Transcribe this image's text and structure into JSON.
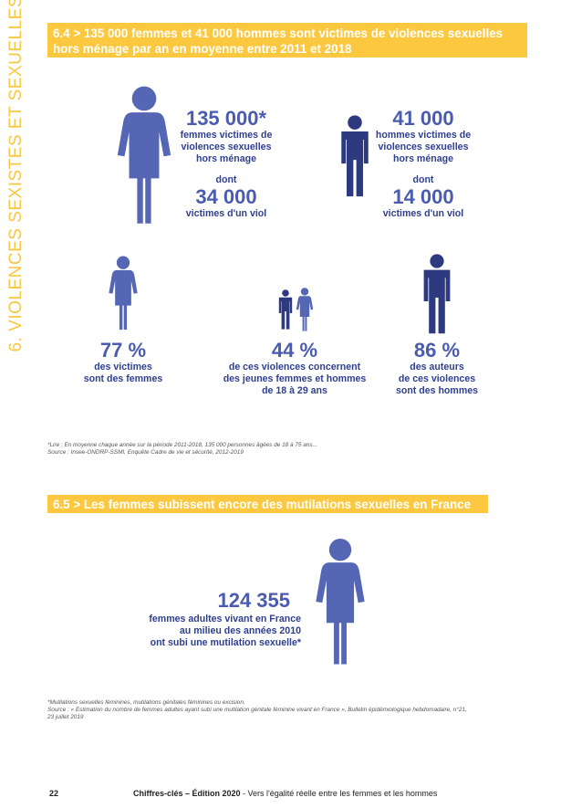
{
  "chapter_title": "6. VIOLENCES SEXISTES ET SEXUELLES",
  "section_64": {
    "banner": "6.4 > 135 000 femmes et 41 000 hommes sont victimes de violences sexuelles hors ménage par an en moyenne entre 2011 et 2018",
    "women": {
      "value": "135 000*",
      "desc_1": "femmes victimes de",
      "desc_2": "violences sexuelles",
      "desc_3": "hors ménage",
      "dont": "dont",
      "rape_value": "34 000",
      "rape_label": "victimes d'un viol"
    },
    "men": {
      "value": "41 000",
      "desc_1": "hommes victimes de",
      "desc_2": "violences sexuelles",
      "desc_3": "hors ménage",
      "dont": "dont",
      "rape_value": "14 000",
      "rape_label": "victimes d'un viol"
    },
    "victims_women": {
      "value": "77 %",
      "line_1": "des victimes",
      "line_2": "sont des femmes"
    },
    "young": {
      "value": "44 %",
      "line_1": "de ces violences concernent",
      "line_2": "des jeunes femmes et hommes",
      "line_3": "de 18 à 29 ans"
    },
    "authors_men": {
      "value": "86 %",
      "line_1": "des auteurs",
      "line_2": "de ces violences",
      "line_3": "sont des hommes"
    },
    "note_1": "*Lire : En moyenne chaque année sur la période 2011-2018, 135 000 personnes âgées de 18 à 75 ans...",
    "note_2": "Source : Insee-ONDRP-SSMI, Enquête Cadre de vie et sécurité, 2012-2019"
  },
  "section_65": {
    "banner": "6.5 > Les femmes subissent encore des mutilations sexuelles en France",
    "value": "124 355",
    "line_1": "femmes adultes vivant en France",
    "line_2": "au milieu des années 2010",
    "line_3": "ont subi une mutilation sexuelle*",
    "note_1": "*Mutilations sexuelles féminines, mutilations génitales féminines ou excision.",
    "note_2": "Source : « Estimation du nombre de femmes adultes ayant subi une mutilation génitale féminine vivant en France », Bulletin épidémiologique hebdomadaire, n°21,",
    "note_3": "23 juillet 2019"
  },
  "footer": {
    "page": "22",
    "title": "Chiffres-clés – Édition 2020",
    "sep": " - ",
    "subtitle": "Vers l'égalité réelle entre les femmes et les hommes"
  },
  "colors": {
    "banner": "#fbc83f",
    "side_title": "#f7c843",
    "woman_icon": "#5466b4",
    "man_icon": "#2e3a80",
    "text": "#3d4f9f"
  },
  "icons": [
    "woman-icon",
    "man-icon"
  ]
}
